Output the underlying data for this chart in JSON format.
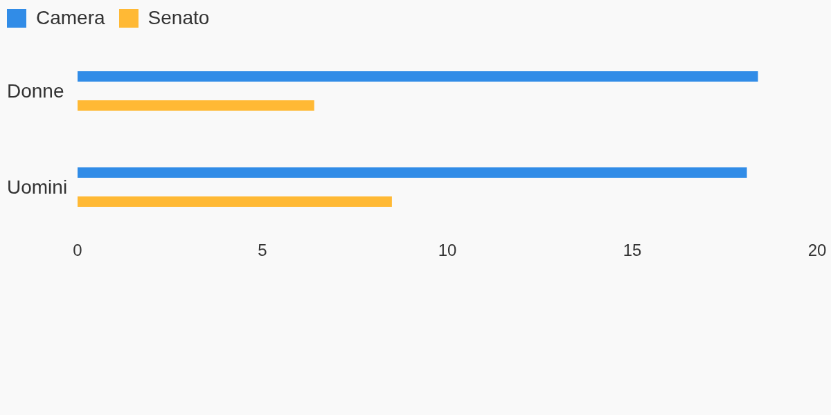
{
  "chart_data": {
    "type": "bar",
    "orientation": "horizontal",
    "categories": [
      "Donne",
      "Uomini"
    ],
    "series": [
      {
        "name": "Camera",
        "color": "#318ce7",
        "values": [
          18.4,
          18.1
        ]
      },
      {
        "name": "Senato",
        "color": "#ffb935",
        "values": [
          6.4,
          8.5
        ]
      }
    ],
    "xlim": [
      0,
      20
    ],
    "xticks": [
      0,
      5,
      10,
      15,
      20
    ],
    "legend": "top left"
  }
}
